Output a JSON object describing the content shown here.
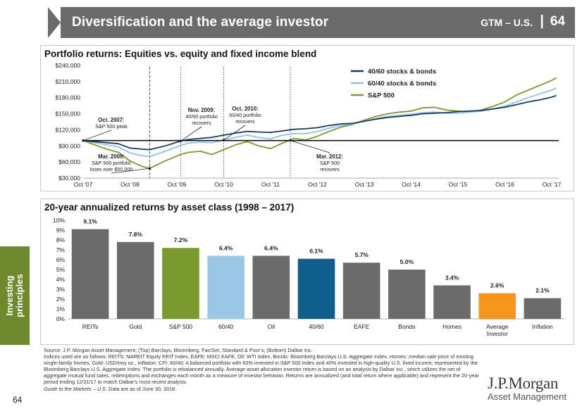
{
  "header": {
    "title": "Diversification and the average investor",
    "region": "GTM – U.S.",
    "separator": "|",
    "page": "64"
  },
  "side_tab": {
    "line1": "Investing",
    "line2": "principles"
  },
  "page_number": "64",
  "colors": {
    "blend_40_60": "#1f3a5f",
    "blend_60_40": "#8ec3e6",
    "sp500": "#7a9a2e",
    "bar_default": "#6b6b6b",
    "bar_sp500": "#7a9a2e",
    "bar_60_40": "#9cc8e5",
    "bar_40_60": "#0f5e8a",
    "bar_average_investor": "#f7941d",
    "header_bg": "#6b6b6b",
    "side_tab_bg": "#6f8a2e"
  },
  "chart_data": [
    {
      "type": "line",
      "title": "Portfolio returns: Equities vs. equity and fixed income blend",
      "ylim": [
        30000,
        240000
      ],
      "yticks": [
        30000,
        60000,
        90000,
        120000,
        150000,
        180000,
        210000,
        240000
      ],
      "ytick_labels": [
        "$30,000",
        "$60,000",
        "$90,000",
        "$120,000",
        "$150,000",
        "$180,000",
        "$210,000",
        "$240,000"
      ],
      "xlim": [
        2007.75,
        2017.9
      ],
      "xticks": [
        2007.75,
        2008.75,
        2009.75,
        2010.75,
        2011.75,
        2012.75,
        2013.75,
        2014.75,
        2015.75,
        2016.75,
        2017.75
      ],
      "xtick_labels": [
        "Oct '07",
        "Oct '08",
        "Oct '09",
        "Oct '10",
        "Oct '11",
        "Oct '12",
        "Oct '13",
        "Oct '14",
        "Oct '15",
        "Oct '16",
        "Oct '17"
      ],
      "baseline": 100000,
      "legend": [
        "40/60 stocks & bonds",
        "60/40 stocks & bonds",
        "S&P 500"
      ],
      "series": [
        {
          "name": "40/60 stocks & bonds",
          "x": [
            2007.75,
            2008.0,
            2008.25,
            2008.5,
            2008.75,
            2009.0,
            2009.17,
            2009.5,
            2009.83,
            2010.0,
            2010.25,
            2010.5,
            2010.75,
            2011.0,
            2011.25,
            2011.5,
            2011.75,
            2012.0,
            2012.25,
            2012.5,
            2012.75,
            2013.0,
            2013.25,
            2013.5,
            2013.75,
            2014.0,
            2014.25,
            2014.5,
            2014.75,
            2015.0,
            2015.25,
            2015.5,
            2015.75,
            2016.0,
            2016.25,
            2016.5,
            2016.75,
            2017.0,
            2017.25,
            2017.5,
            2017.75,
            2017.85
          ],
          "values": [
            100000,
            98000,
            96000,
            94000,
            86000,
            84000,
            83000,
            90000,
            99000,
            102000,
            104000,
            106000,
            110000,
            114000,
            117000,
            116000,
            115000,
            118000,
            121000,
            122000,
            124000,
            128000,
            131000,
            132000,
            136000,
            140000,
            143000,
            145000,
            147000,
            150000,
            151000,
            152000,
            154000,
            155000,
            156000,
            159000,
            162000,
            167000,
            172000,
            176000,
            181000,
            184000
          ]
        },
        {
          "name": "60/40 stocks & bonds",
          "x": [
            2007.75,
            2008.0,
            2008.25,
            2008.5,
            2008.75,
            2009.0,
            2009.17,
            2009.5,
            2009.83,
            2010.0,
            2010.25,
            2010.5,
            2010.75,
            2011.0,
            2011.25,
            2011.5,
            2011.75,
            2012.0,
            2012.25,
            2012.5,
            2012.75,
            2013.0,
            2013.25,
            2013.5,
            2013.75,
            2014.0,
            2014.25,
            2014.5,
            2014.75,
            2015.0,
            2015.25,
            2015.5,
            2015.75,
            2016.0,
            2016.25,
            2016.5,
            2016.75,
            2017.0,
            2017.25,
            2017.5,
            2017.75,
            2017.85
          ],
          "values": [
            100000,
            96000,
            92000,
            88000,
            77000,
            72000,
            70000,
            80000,
            91000,
            95000,
            97000,
            96000,
            101000,
            106000,
            110000,
            106000,
            103000,
            110000,
            113000,
            113000,
            117000,
            123000,
            128000,
            131000,
            136000,
            141000,
            145000,
            147000,
            149000,
            152000,
            153000,
            151000,
            151000,
            153000,
            155000,
            159000,
            164000,
            172000,
            180000,
            187000,
            194000,
            198000
          ]
        },
        {
          "name": "S&P 500",
          "x": [
            2007.75,
            2008.0,
            2008.25,
            2008.5,
            2008.75,
            2009.0,
            2009.17,
            2009.5,
            2009.83,
            2010.0,
            2010.25,
            2010.5,
            2010.75,
            2011.0,
            2011.25,
            2011.5,
            2011.75,
            2012.0,
            2012.25,
            2012.5,
            2012.75,
            2013.0,
            2013.25,
            2013.5,
            2013.75,
            2014.0,
            2014.25,
            2014.5,
            2014.75,
            2015.0,
            2015.25,
            2015.5,
            2015.75,
            2016.0,
            2016.25,
            2016.5,
            2016.75,
            2017.0,
            2017.25,
            2017.5,
            2017.75,
            2017.85
          ],
          "values": [
            100000,
            92000,
            84000,
            78000,
            62000,
            52000,
            48000,
            62000,
            74000,
            78000,
            80000,
            74000,
            83000,
            92000,
            98000,
            90000,
            85000,
            95000,
            104000,
            101000,
            108000,
            117000,
            125000,
            130000,
            138000,
            145000,
            150000,
            153000,
            155000,
            161000,
            162000,
            157000,
            155000,
            153000,
            157000,
            164000,
            172000,
            185000,
            194000,
            203000,
            212000,
            217000
          ]
        }
      ],
      "annotations": [
        {
          "id": "oct-2007",
          "x": 2007.75,
          "line_style": "none",
          "bold": "Oct. 2007:",
          "lines": [
            "S&P 500 peak"
          ]
        },
        {
          "id": "mar-2009",
          "x": 2009.17,
          "line_style": "dashed",
          "bold": "Mar. 2009:",
          "lines": [
            "S&P 500 portfolio",
            "loses over $50,000"
          ]
        },
        {
          "id": "nov-2009",
          "x": 2009.83,
          "line_style": "dotted",
          "bold": "Nov. 2009:",
          "lines": [
            "40/60 portfolio",
            "recovers"
          ]
        },
        {
          "id": "oct-2010",
          "x": 2010.75,
          "line_style": "dotted",
          "bold": "Oct. 2010:",
          "lines": [
            "60/40 portfolio",
            "recovers"
          ]
        },
        {
          "id": "mar-2012",
          "x": 2012.17,
          "line_style": "dotted",
          "bold": "Mar. 2012:",
          "lines": [
            "S&P 500",
            "recovers"
          ]
        }
      ]
    },
    {
      "type": "bar",
      "title": "20-year annualized returns by asset class (1998 – 2017)",
      "categories": [
        "REITs",
        "Gold",
        "S&P 500",
        "60/40",
        "Oil",
        "40/60",
        "EAFE",
        "Bonds",
        "Homes",
        "Average Investor",
        "Inflation"
      ],
      "category_lines": [
        [
          "REITs"
        ],
        [
          "Gold"
        ],
        [
          "S&P 500"
        ],
        [
          "60/40"
        ],
        [
          "Oil"
        ],
        [
          "40/60"
        ],
        [
          "EAFE"
        ],
        [
          "Bonds"
        ],
        [
          "Homes"
        ],
        [
          "Average",
          "Investor"
        ],
        [
          "Inflation"
        ]
      ],
      "values": [
        9.1,
        7.8,
        7.2,
        6.4,
        6.4,
        6.1,
        5.7,
        5.0,
        3.4,
        2.6,
        2.1
      ],
      "value_labels": [
        "9.1%",
        "7.8%",
        "7.2%",
        "6.4%",
        "6.4%",
        "6.1%",
        "5.7%",
        "5.0%",
        "3.4%",
        "2.6%",
        "2.1%"
      ],
      "bar_color_keys": [
        "bar_default",
        "bar_default",
        "bar_sp500",
        "bar_60_40",
        "bar_default",
        "bar_40_60",
        "bar_default",
        "bar_default",
        "bar_default",
        "bar_average_investor",
        "bar_default"
      ],
      "ylim": [
        0,
        10
      ],
      "yticks": [
        0,
        1,
        2,
        3,
        4,
        5,
        6,
        7,
        8,
        9,
        10
      ],
      "ytick_labels": [
        "0%",
        "1%",
        "2%",
        "3%",
        "4%",
        "5%",
        "6%",
        "7%",
        "8%",
        "9%",
        "10%"
      ]
    }
  ],
  "footnotes": {
    "source": "Source: J.P. Morgan Asset Management; (Top) Barclays, Bloomberg, FactSet, Standard & Poor's; (Bottom) Dalbar Inc.",
    "indices": "Indices used are as follows: REITS: NAREIT Equity REIT Index, EAFE: MSCI EAFE, Oil: WTI Index, Bonds: Bloomberg Barclays U.S. Aggregate Index, Homes: median sale price of existing single-family homes, Gold: USD/troy oz., Inflation: CPI. 60/40: A balanced portfolio with 60% invested in S&P 500 Index and 40% invested in high-quality U.S. fixed income, represented by the Bloomberg Barclays U.S. Aggregate Index. The portfolio is rebalanced annually. Average asset allocation investor return is based on an analysis by Dalbar Inc., which utilizes the net of aggregate mutual fund sales, redemptions and exchanges each month as a measure of investor behavior. Returns are annualized (and total return where applicable) and represent the 20-year period ending 12/31/17 to match Dalbar's most recent analysis.",
    "guide": "Guide to the Markets – U.S.",
    "asof": " Data are as of June 30, 2018."
  },
  "logo": {
    "name": "J.P.Morgan",
    "sub": "Asset Management"
  }
}
